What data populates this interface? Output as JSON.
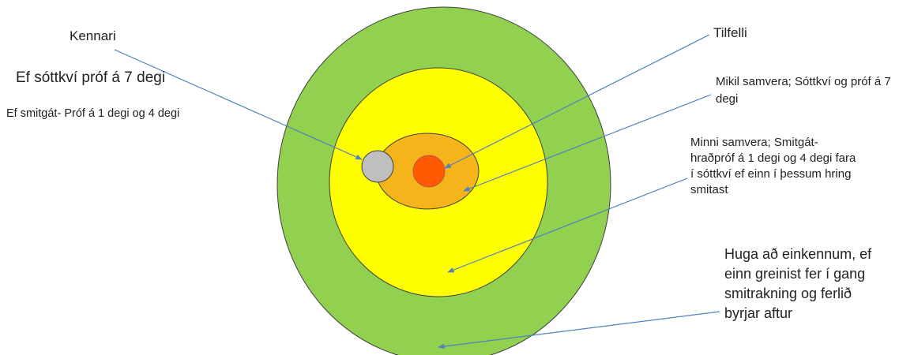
{
  "diagram": {
    "rings": [
      {
        "name": "outer-green",
        "color": "#92d050",
        "stroke": "#404040"
      },
      {
        "name": "yellow",
        "color": "#ffff00",
        "stroke": "#404040"
      },
      {
        "name": "orange",
        "color": "#f4b41a",
        "stroke": "#404040"
      },
      {
        "name": "teacher-grey",
        "color": "#bfbfbf",
        "stroke": "#404040"
      },
      {
        "name": "case-red",
        "color": "#ff5a00",
        "stroke": "#c0504d"
      }
    ],
    "arrow_color": "#4f81bd",
    "labels": {
      "kennari": "Kennari",
      "ef_sottkvi": "Ef sóttkví próf á 7 degi",
      "ef_smitgat": "Ef smitgát- Próf á 1 degi og 4 degi",
      "tilfelli": "Tilfelli",
      "mikil_samvera": "Mikil samvera; Sóttkví og  próf á 7 degi",
      "minni_samvera": "Minni samvera; Smitgát- hraðpróf á 1 degi og 4 degi fara í sóttkví ef einn í þessum hring smitast",
      "huga": "Huga að einkennum, ef einn greinist fer í gang smitrakning og ferlið byrjar aftur"
    }
  }
}
